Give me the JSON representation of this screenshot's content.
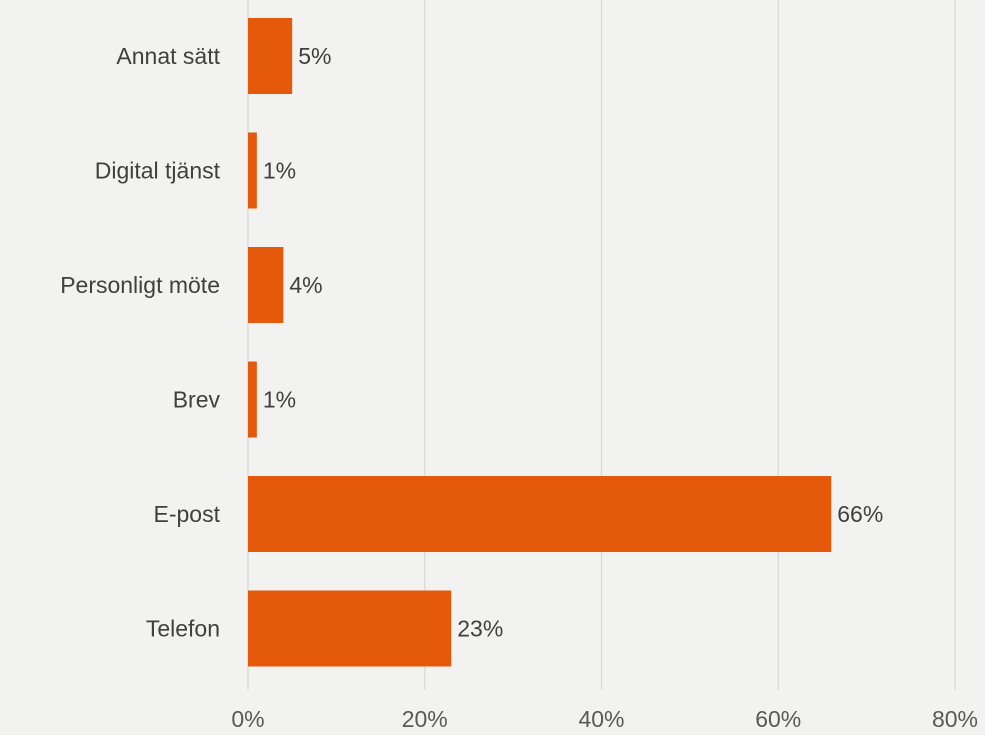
{
  "chart_data": {
    "type": "bar",
    "orientation": "horizontal",
    "title": "",
    "xlabel": "",
    "ylabel": "",
    "categories": [
      "Annat sätt",
      "Digital tjänst",
      "Personligt möte",
      "Brev",
      "E-post",
      "Telefon"
    ],
    "values": [
      5,
      1,
      4,
      1,
      66,
      23
    ],
    "value_labels": [
      "5%",
      "1%",
      "4%",
      "1%",
      "66%",
      "23%"
    ],
    "xlim": [
      0,
      80
    ],
    "x_ticks": [
      0,
      20,
      40,
      60,
      80
    ],
    "x_tick_labels": [
      "0%",
      "20%",
      "40%",
      "60%",
      "80%"
    ],
    "grid": true,
    "legend": "none",
    "colors": {
      "bar": "#e55a0a",
      "background": "#f2f2f0",
      "grid": "#d9d9d9",
      "text": "#404040"
    }
  }
}
